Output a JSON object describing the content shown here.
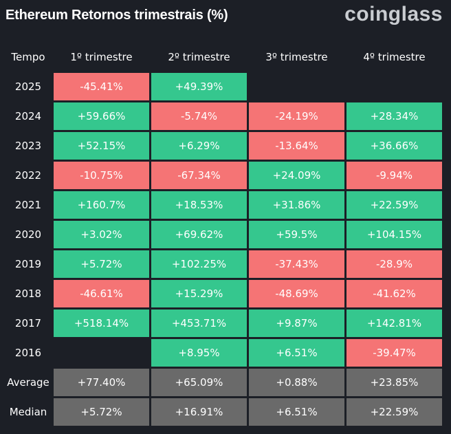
{
  "header": {
    "title": "Ethereum Retornos trimestrais (%)",
    "brand": "coinglass"
  },
  "colors": {
    "background": "#1c1f26",
    "positive": "#35c78e",
    "negative": "#f57475",
    "summary": "#6a6a6a"
  },
  "chart_data": {
    "type": "table",
    "title": "Ethereum Retornos trimestrais (%)",
    "columns": [
      "Tempo",
      "1º trimestre",
      "2º trimestre",
      "3º trimestre",
      "4º trimestre"
    ],
    "rows": [
      {
        "label": "2025",
        "cells": [
          {
            "text": "-45.41%",
            "value": -45.41,
            "sign": "neg"
          },
          {
            "text": "+49.39%",
            "value": 49.39,
            "sign": "pos"
          },
          {
            "text": "",
            "value": null,
            "sign": "empty"
          },
          {
            "text": "",
            "value": null,
            "sign": "empty"
          }
        ]
      },
      {
        "label": "2024",
        "cells": [
          {
            "text": "+59.66%",
            "value": 59.66,
            "sign": "pos"
          },
          {
            "text": "-5.74%",
            "value": -5.74,
            "sign": "neg"
          },
          {
            "text": "-24.19%",
            "value": -24.19,
            "sign": "neg"
          },
          {
            "text": "+28.34%",
            "value": 28.34,
            "sign": "pos"
          }
        ]
      },
      {
        "label": "2023",
        "cells": [
          {
            "text": "+52.15%",
            "value": 52.15,
            "sign": "pos"
          },
          {
            "text": "+6.29%",
            "value": 6.29,
            "sign": "pos"
          },
          {
            "text": "-13.64%",
            "value": -13.64,
            "sign": "neg"
          },
          {
            "text": "+36.66%",
            "value": 36.66,
            "sign": "pos"
          }
        ]
      },
      {
        "label": "2022",
        "cells": [
          {
            "text": "-10.75%",
            "value": -10.75,
            "sign": "neg"
          },
          {
            "text": "-67.34%",
            "value": -67.34,
            "sign": "neg"
          },
          {
            "text": "+24.09%",
            "value": 24.09,
            "sign": "pos"
          },
          {
            "text": "-9.94%",
            "value": -9.94,
            "sign": "neg"
          }
        ]
      },
      {
        "label": "2021",
        "cells": [
          {
            "text": "+160.7%",
            "value": 160.7,
            "sign": "pos"
          },
          {
            "text": "+18.53%",
            "value": 18.53,
            "sign": "pos"
          },
          {
            "text": "+31.86%",
            "value": 31.86,
            "sign": "pos"
          },
          {
            "text": "+22.59%",
            "value": 22.59,
            "sign": "pos"
          }
        ]
      },
      {
        "label": "2020",
        "cells": [
          {
            "text": "+3.02%",
            "value": 3.02,
            "sign": "pos"
          },
          {
            "text": "+69.62%",
            "value": 69.62,
            "sign": "pos"
          },
          {
            "text": "+59.5%",
            "value": 59.5,
            "sign": "pos"
          },
          {
            "text": "+104.15%",
            "value": 104.15,
            "sign": "pos"
          }
        ]
      },
      {
        "label": "2019",
        "cells": [
          {
            "text": "+5.72%",
            "value": 5.72,
            "sign": "pos"
          },
          {
            "text": "+102.25%",
            "value": 102.25,
            "sign": "pos"
          },
          {
            "text": "-37.43%",
            "value": -37.43,
            "sign": "neg"
          },
          {
            "text": "-28.9%",
            "value": -28.9,
            "sign": "neg"
          }
        ]
      },
      {
        "label": "2018",
        "cells": [
          {
            "text": "-46.61%",
            "value": -46.61,
            "sign": "neg"
          },
          {
            "text": "+15.29%",
            "value": 15.29,
            "sign": "pos"
          },
          {
            "text": "-48.69%",
            "value": -48.69,
            "sign": "neg"
          },
          {
            "text": "-41.62%",
            "value": -41.62,
            "sign": "neg"
          }
        ]
      },
      {
        "label": "2017",
        "cells": [
          {
            "text": "+518.14%",
            "value": 518.14,
            "sign": "pos"
          },
          {
            "text": "+453.71%",
            "value": 453.71,
            "sign": "pos"
          },
          {
            "text": "+9.87%",
            "value": 9.87,
            "sign": "pos"
          },
          {
            "text": "+142.81%",
            "value": 142.81,
            "sign": "pos"
          }
        ]
      },
      {
        "label": "2016",
        "cells": [
          {
            "text": "",
            "value": null,
            "sign": "empty"
          },
          {
            "text": "+8.95%",
            "value": 8.95,
            "sign": "pos"
          },
          {
            "text": "+6.51%",
            "value": 6.51,
            "sign": "pos"
          },
          {
            "text": "-39.47%",
            "value": -39.47,
            "sign": "neg"
          }
        ]
      },
      {
        "label": "Average",
        "cells": [
          {
            "text": "+77.40%",
            "value": 77.4,
            "sign": "stat"
          },
          {
            "text": "+65.09%",
            "value": 65.09,
            "sign": "stat"
          },
          {
            "text": "+0.88%",
            "value": 0.88,
            "sign": "stat"
          },
          {
            "text": "+23.85%",
            "value": 23.85,
            "sign": "stat"
          }
        ]
      },
      {
        "label": "Median",
        "cells": [
          {
            "text": "+5.72%",
            "value": 5.72,
            "sign": "stat"
          },
          {
            "text": "+16.91%",
            "value": 16.91,
            "sign": "stat"
          },
          {
            "text": "+6.51%",
            "value": 6.51,
            "sign": "stat"
          },
          {
            "text": "+22.59%",
            "value": 22.59,
            "sign": "stat"
          }
        ]
      }
    ]
  }
}
